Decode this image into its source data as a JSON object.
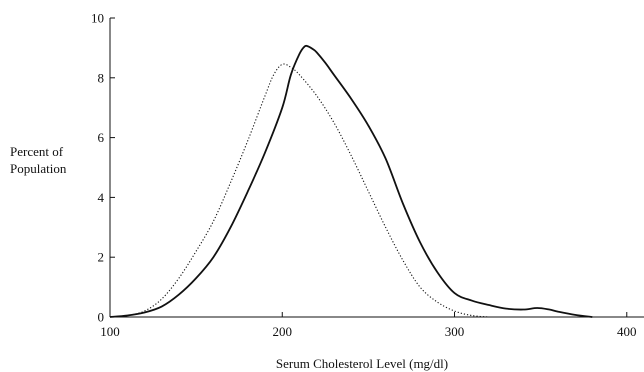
{
  "chart_data": {
    "type": "line",
    "xlabel": "Serum Cholesterol Level (mg/dl)",
    "ylabel_lines": [
      "Percent of",
      "Population"
    ],
    "xlim": [
      100,
      410
    ],
    "ylim": [
      0,
      10
    ],
    "xticks": [
      100,
      200,
      300,
      400
    ],
    "yticks": [
      0,
      2,
      4,
      6,
      8,
      10
    ],
    "grid": false,
    "series": [
      {
        "style": "solid",
        "x": [
          100,
          110,
          120,
          130,
          140,
          150,
          160,
          170,
          180,
          190,
          200,
          205,
          210,
          213,
          215,
          218,
          220,
          225,
          230,
          240,
          250,
          260,
          270,
          280,
          290,
          300,
          310,
          320,
          330,
          340,
          348,
          355,
          360,
          370,
          380
        ],
        "y": [
          0,
          0.05,
          0.15,
          0.35,
          0.75,
          1.3,
          2.0,
          3.0,
          4.2,
          5.5,
          7.0,
          8.1,
          8.8,
          9.05,
          9.05,
          8.95,
          8.85,
          8.5,
          8.1,
          7.3,
          6.4,
          5.3,
          3.8,
          2.5,
          1.5,
          0.8,
          0.55,
          0.4,
          0.28,
          0.25,
          0.3,
          0.25,
          0.18,
          0.07,
          0
        ]
      },
      {
        "style": "dotted",
        "x": [
          100,
          110,
          120,
          130,
          140,
          150,
          160,
          170,
          180,
          190,
          195,
          200,
          205,
          210,
          220,
          230,
          240,
          250,
          260,
          270,
          280,
          290,
          300,
          310,
          320
        ],
        "y": [
          0,
          0.05,
          0.2,
          0.6,
          1.3,
          2.2,
          3.2,
          4.5,
          5.9,
          7.4,
          8.1,
          8.45,
          8.35,
          8.1,
          7.4,
          6.5,
          5.4,
          4.2,
          3.0,
          1.9,
          1.0,
          0.5,
          0.2,
          0.05,
          0
        ]
      }
    ]
  }
}
